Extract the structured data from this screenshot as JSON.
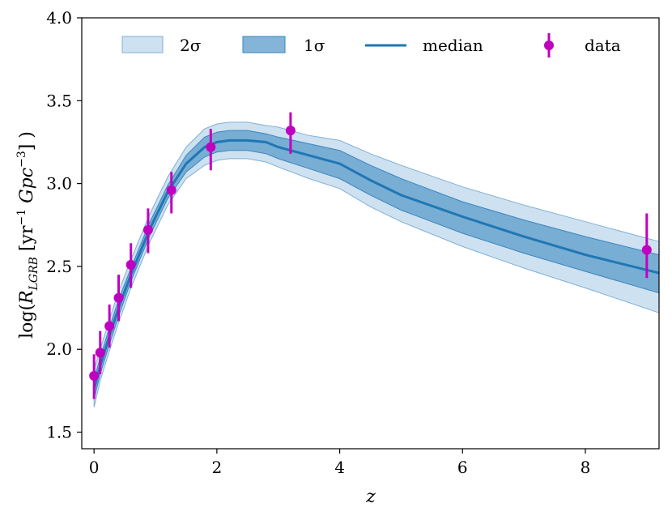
{
  "chart_data": {
    "type": "line",
    "title": "",
    "xlabel": "z",
    "ylabel": {
      "prefix": "log(",
      "symbol": "R",
      "subscript": "LGRB",
      "units": " [yr",
      "exp1": "−1",
      "units2": " Gpc",
      "exp2": "−3",
      "suffix": "] )"
    },
    "xlim": [
      -0.2,
      9.2
    ],
    "ylim": [
      1.4,
      4.0
    ],
    "xticks": [
      0,
      2,
      4,
      6,
      8
    ],
    "xtick_labels": [
      "0",
      "2",
      "4",
      "6",
      "8"
    ],
    "yticks": [
      1.5,
      2.0,
      2.5,
      3.0,
      3.5,
      4.0
    ],
    "ytick_labels": [
      "1.5",
      "2.0",
      "2.5",
      "3.0",
      "3.5",
      "4.0"
    ],
    "legend": {
      "placement": "top",
      "entries": [
        {
          "label": "2σ",
          "kind": "band2"
        },
        {
          "label": "1σ",
          "kind": "band1"
        },
        {
          "label": "median",
          "kind": "line"
        },
        {
          "label": "data",
          "kind": "errorbar"
        }
      ]
    },
    "colors": {
      "band2": "#a6c8e4",
      "band2_edge": "#7fb0d8",
      "band1": "#5b9bcb",
      "band1_edge": "#3a86c0",
      "median": "#1f77b4",
      "data": "#c000c0"
    },
    "band_opacity": {
      "band2": 0.55,
      "band1": 0.75
    },
    "series": [
      {
        "name": "median",
        "x": [
          0.0,
          0.1,
          0.25,
          0.4,
          0.6,
          0.9,
          1.2,
          1.5,
          1.8,
          2.0,
          2.2,
          2.5,
          2.8,
          3.0,
          3.5,
          4.0,
          4.5,
          5.0,
          6.0,
          7.0,
          8.0,
          9.2
        ],
        "y": [
          1.76,
          1.9,
          2.08,
          2.25,
          2.45,
          2.72,
          2.95,
          3.12,
          3.22,
          3.25,
          3.26,
          3.26,
          3.25,
          3.22,
          3.17,
          3.12,
          3.02,
          2.93,
          2.8,
          2.68,
          2.57,
          2.46
        ],
        "band1_lower": [
          1.7,
          1.85,
          2.03,
          2.2,
          2.41,
          2.68,
          2.91,
          3.07,
          3.16,
          3.19,
          3.2,
          3.2,
          3.18,
          3.15,
          3.09,
          3.03,
          2.93,
          2.84,
          2.7,
          2.58,
          2.47,
          2.34
        ],
        "band1_upper": [
          1.82,
          1.95,
          2.13,
          2.3,
          2.49,
          2.76,
          2.99,
          3.17,
          3.28,
          3.31,
          3.32,
          3.32,
          3.3,
          3.28,
          3.24,
          3.2,
          3.11,
          3.03,
          2.89,
          2.78,
          2.68,
          2.57
        ],
        "band2_lower": [
          1.65,
          1.81,
          1.99,
          2.16,
          2.37,
          2.64,
          2.87,
          3.03,
          3.11,
          3.14,
          3.15,
          3.15,
          3.13,
          3.1,
          3.03,
          2.97,
          2.86,
          2.77,
          2.62,
          2.49,
          2.37,
          2.22
        ],
        "band2_upper": [
          1.88,
          2.0,
          2.18,
          2.35,
          2.54,
          2.81,
          3.04,
          3.22,
          3.33,
          3.36,
          3.37,
          3.37,
          3.35,
          3.34,
          3.29,
          3.26,
          3.18,
          3.11,
          2.98,
          2.87,
          2.77,
          2.65
        ]
      },
      {
        "name": "data",
        "x": [
          0.0,
          0.1,
          0.25,
          0.4,
          0.6,
          0.88,
          1.26,
          1.9,
          3.2,
          9.0
        ],
        "y": [
          1.84,
          1.98,
          2.14,
          2.31,
          2.51,
          2.72,
          2.96,
          3.22,
          3.32,
          2.6
        ],
        "yerr_lower": [
          0.14,
          0.13,
          0.13,
          0.14,
          0.14,
          0.14,
          0.14,
          0.14,
          0.14,
          0.17
        ],
        "yerr_upper": [
          0.13,
          0.13,
          0.13,
          0.14,
          0.13,
          0.13,
          0.11,
          0.11,
          0.11,
          0.22
        ]
      }
    ]
  }
}
